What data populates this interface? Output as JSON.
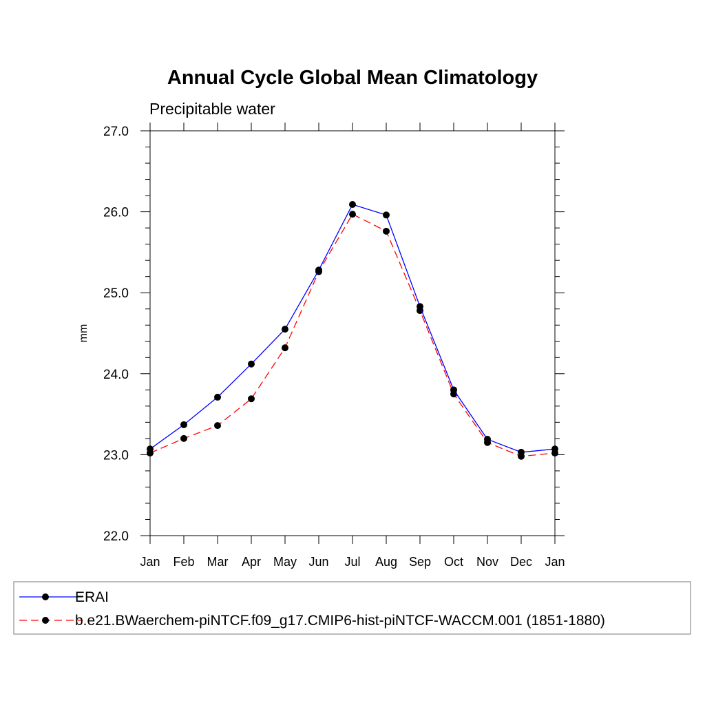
{
  "chart_data": {
    "type": "line",
    "title": "Annual Cycle Global Mean Climatology",
    "subtitle": "Precipitable water",
    "ylabel": "mm",
    "xlabel": "",
    "ylim": [
      22.0,
      27.0
    ],
    "yticks": [
      "22.0",
      "23.0",
      "24.0",
      "25.0",
      "26.0",
      "27.0"
    ],
    "categories": [
      "Jan",
      "Feb",
      "Mar",
      "Apr",
      "May",
      "Jun",
      "Jul",
      "Aug",
      "Sep",
      "Oct",
      "Nov",
      "Dec",
      "Jan"
    ],
    "legend_position": "bottom",
    "series": [
      {
        "name": "ERAI",
        "color": "#0000ff",
        "line_style": "solid",
        "marker": "filled-circle",
        "values": [
          23.07,
          23.37,
          23.71,
          24.12,
          24.55,
          25.28,
          26.09,
          25.96,
          24.83,
          23.8,
          23.19,
          23.03,
          23.07
        ]
      },
      {
        "name": "b.e21.BWaerchem-piNTCF.f09_g17.CMIP6-hist-piNTCF-WACCM.001 (1851-1880)",
        "color": "#ff0000",
        "line_style": "dashed",
        "marker": "filled-circle",
        "values": [
          23.02,
          23.2,
          23.36,
          23.69,
          24.32,
          25.26,
          25.97,
          25.76,
          24.78,
          23.75,
          23.15,
          22.98,
          23.02
        ]
      }
    ]
  }
}
